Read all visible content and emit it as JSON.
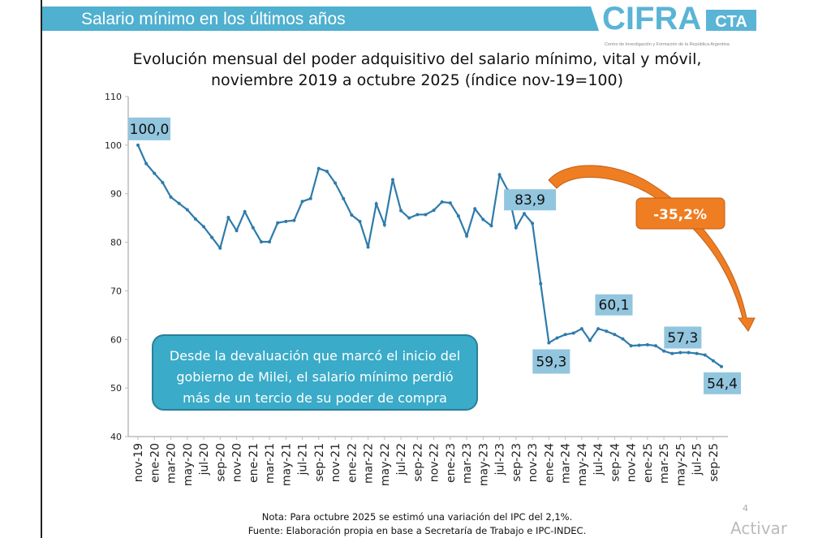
{
  "header": {
    "title": "Salario mínimo en los últimos años",
    "band_color": "#4fb0d0",
    "logo": {
      "main": "CIFRA",
      "suffix": "CTA",
      "tagline": "Centro de Investigación y Formación de la República Argentina"
    }
  },
  "chart_data": {
    "type": "line",
    "title": "Evolución mensual del poder adquisitivo del salario mínimo, vital y móvil,",
    "subtitle": "noviembre 2019 a octubre 2025 (índice nov-19=100)",
    "xlabel": "",
    "ylabel": "",
    "ylim": [
      40,
      110
    ],
    "y_ticks": [
      "40",
      "50",
      "60",
      "70",
      "80",
      "90",
      "100",
      "110"
    ],
    "grid": false,
    "legend": "none",
    "line_color": "#2e7bab",
    "x_tick_labels": [
      "nov-19",
      "ene-20",
      "mar-20",
      "may-20",
      "jul-20",
      "sep-20",
      "nov-20",
      "ene-21",
      "mar-21",
      "may-21",
      "jul-21",
      "sep-21",
      "nov-21",
      "ene-22",
      "mar-22",
      "may-22",
      "jul-22",
      "sep-22",
      "nov-22",
      "ene-23",
      "mar-23",
      "may-23",
      "jul-23",
      "sep-23",
      "nov-23",
      "ene-24",
      "mar-24",
      "may-24",
      "jul-24",
      "sep-24",
      "nov-24",
      "ene-25",
      "mar-25",
      "may-25",
      "jul-25",
      "sep-25"
    ],
    "x": [
      "nov-19",
      "dic-19",
      "ene-20",
      "feb-20",
      "mar-20",
      "abr-20",
      "may-20",
      "jun-20",
      "jul-20",
      "ago-20",
      "sep-20",
      "oct-20",
      "nov-20",
      "dic-20",
      "ene-21",
      "feb-21",
      "mar-21",
      "abr-21",
      "may-21",
      "jun-21",
      "jul-21",
      "ago-21",
      "sep-21",
      "oct-21",
      "nov-21",
      "dic-21",
      "ene-22",
      "feb-22",
      "mar-22",
      "abr-22",
      "may-22",
      "jun-22",
      "jul-22",
      "ago-22",
      "sep-22",
      "oct-22",
      "nov-22",
      "dic-22",
      "ene-23",
      "feb-23",
      "mar-23",
      "abr-23",
      "may-23",
      "jun-23",
      "jul-23",
      "ago-23",
      "sep-23",
      "oct-23",
      "nov-23",
      "dic-23",
      "ene-24",
      "feb-24",
      "mar-24",
      "abr-24",
      "may-24",
      "jun-24",
      "jul-24",
      "ago-24",
      "sep-24",
      "oct-24",
      "nov-24",
      "dic-24",
      "ene-25",
      "feb-25",
      "mar-25",
      "abr-25",
      "may-25",
      "jun-25",
      "jul-25",
      "ago-25",
      "sep-25",
      "oct-25"
    ],
    "values": [
      100.0,
      96.2,
      94.2,
      92.3,
      89.3,
      88.0,
      86.7,
      84.8,
      83.2,
      81.0,
      78.8,
      85.1,
      82.4,
      86.3,
      83.0,
      80.1,
      80.1,
      84.0,
      84.3,
      84.5,
      88.4,
      89.0,
      95.2,
      94.6,
      92.2,
      89.0,
      85.6,
      84.3,
      79.0,
      87.9,
      83.6,
      92.9,
      86.5,
      85.0,
      85.7,
      85.7,
      86.6,
      88.3,
      88.1,
      85.4,
      81.3,
      86.9,
      84.7,
      83.4,
      93.9,
      90.7,
      83.0,
      85.9,
      83.9,
      71.5,
      59.3,
      60.3,
      61.0,
      61.3,
      62.2,
      59.8,
      62.2,
      61.7,
      61.0,
      60.1,
      58.7,
      58.8,
      58.9,
      58.7,
      57.6,
      57.1,
      57.3,
      57.3,
      57.1,
      56.8,
      55.6,
      54.4
    ],
    "data_labels": [
      {
        "x": "nov-19",
        "text": "100,0"
      },
      {
        "x": "nov-23",
        "text": "83,9"
      },
      {
        "x": "ene-24",
        "text": "59,3"
      },
      {
        "x": "oct-24",
        "text": "60,1"
      },
      {
        "x": "may-25",
        "text": "57,3"
      },
      {
        "x": "oct-25",
        "text": "54,4"
      }
    ],
    "label_color": "#92c5de",
    "annotations": {
      "change": "-35,2%",
      "change_color": "#ef7d22",
      "callout": [
        "Desde la devaluación que marcó el inicio del",
        "gobierno de Milei, el salario mínimo perdió",
        "más de un tercio de su poder de compra"
      ],
      "callout_color": "#3aabc9"
    }
  },
  "footer": {
    "note": "Nota: Para octubre 2025 se estimó una variación del IPC del 2,1%.",
    "source": "Fuente: Elaboración propia en base a Secretaría de Trabajo e IPC-INDEC.",
    "page_number": "4",
    "watermark": "Activar"
  }
}
